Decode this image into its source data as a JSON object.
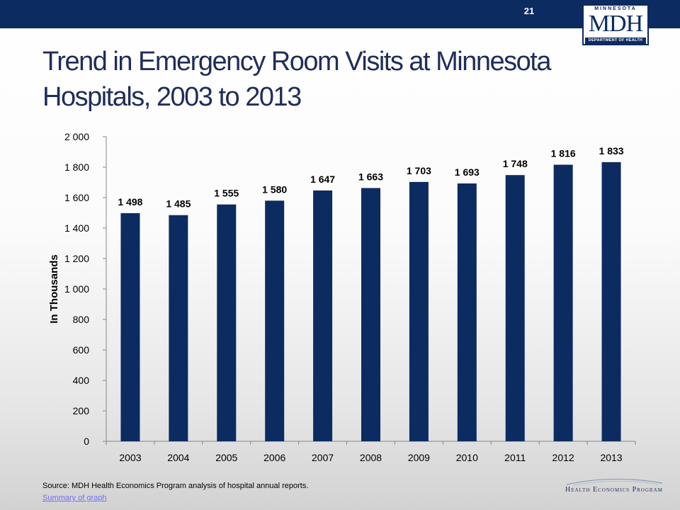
{
  "slide": {
    "number": "21"
  },
  "logo": {
    "top": "MINNESOTA",
    "main": "MDH",
    "bottom": "DEPARTMENT OF HEALTH"
  },
  "title": "Trend in Emergency Room Visits at Minnesota Hospitals, 2003 to 2013",
  "footer": {
    "source": "Source: MDH Health Economics Program analysis of hospital annual reports.",
    "link": "Summary of graph",
    "program_logo": "Health Economics Program"
  },
  "colors": {
    "bar": "#0c2b61",
    "title": "#1f2d5a",
    "header": "#0c2b61"
  },
  "chart_data": {
    "type": "bar",
    "categories": [
      "2003",
      "2004",
      "2005",
      "2006",
      "2007",
      "2008",
      "2009",
      "2010",
      "2011",
      "2012",
      "2013"
    ],
    "values": [
      1498,
      1485,
      1555,
      1580,
      1647,
      1663,
      1703,
      1693,
      1748,
      1816,
      1833
    ],
    "value_labels": [
      "1 498",
      "1 485",
      "1 555",
      "1 580",
      "1 647",
      "1 663",
      "1 703",
      "1 693",
      "1 748",
      "1 816",
      "1 833"
    ],
    "ylabel": "In Thousands",
    "xlabel": "",
    "ylim": [
      0,
      2000
    ],
    "yticks": [
      0,
      200,
      400,
      600,
      800,
      1000,
      1200,
      1400,
      1600,
      1800,
      2000
    ],
    "ytick_labels": [
      "0",
      "200",
      "400",
      "600",
      "800",
      "1 000",
      "1 200",
      "1 400",
      "1 600",
      "1 800",
      "2 000"
    ],
    "grid": false,
    "legend": "none"
  }
}
